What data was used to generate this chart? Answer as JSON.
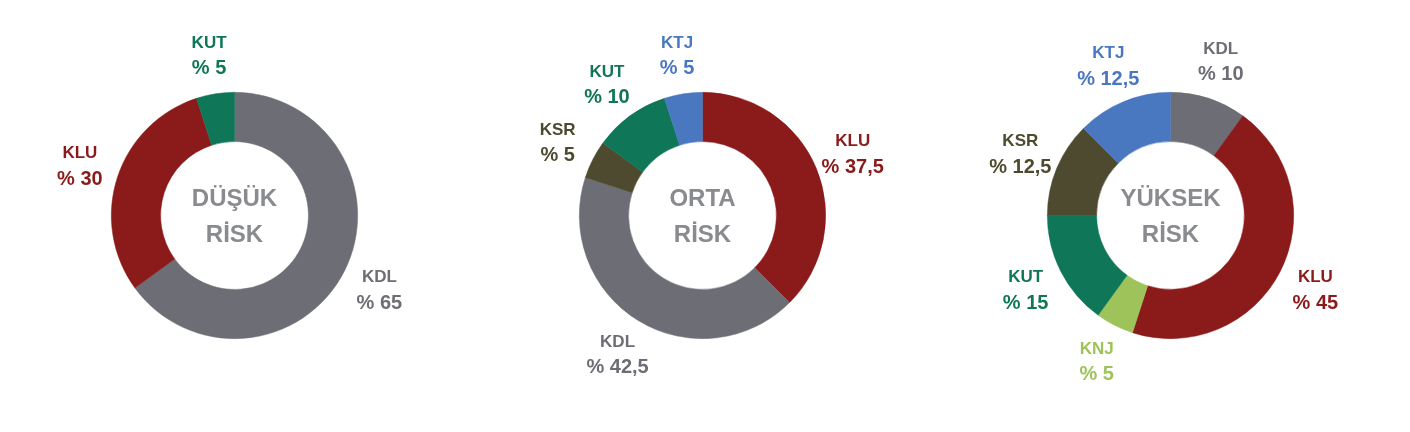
{
  "chart_data": [
    {
      "type": "donut",
      "title": "DÜŞÜK RİSK",
      "categories": [
        "KDL",
        "KLU",
        "KUT"
      ],
      "values": [
        65,
        30,
        5
      ],
      "colors": [
        "#6d6e75",
        "#8b1a1a",
        "#0f7658"
      ],
      "value_labels": [
        "% 65",
        "% 30",
        "% 5"
      ]
    },
    {
      "type": "donut",
      "title": "ORTA RİSK",
      "categories": [
        "KLU",
        "KDL",
        "KSR",
        "KUT",
        "KTJ"
      ],
      "values": [
        37.5,
        42.5,
        5,
        10,
        5
      ],
      "colors": [
        "#8b1a1a",
        "#6d6e75",
        "#4e4a30",
        "#0f7658",
        "#4a78c0"
      ],
      "value_labels": [
        "% 37,5",
        "% 42,5",
        "% 5",
        "% 10",
        "% 5"
      ]
    },
    {
      "type": "donut",
      "title": "YÜKSEK RİSK",
      "categories": [
        "KDL",
        "KLU",
        "KNJ",
        "KUT",
        "KSR",
        "KTJ"
      ],
      "values": [
        10,
        45,
        5,
        15,
        12.5,
        12.5
      ],
      "colors": [
        "#6d6e75",
        "#8b1a1a",
        "#9dc35a",
        "#0f7658",
        "#4e4a30",
        "#4a78c0"
      ],
      "value_labels": [
        "% 10",
        "% 45",
        "% 5",
        "% 15",
        "% 12,5",
        "% 12,5"
      ]
    }
  ]
}
